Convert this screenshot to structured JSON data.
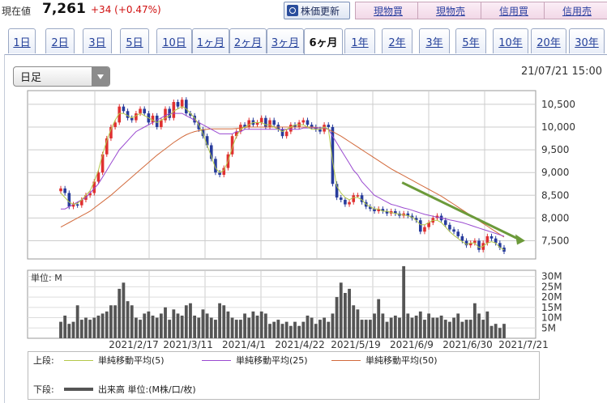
{
  "header": {
    "price_label": "現在値",
    "price_value": "7,261",
    "price_change": "+34 (+0.47%)",
    "refresh_label": "株価更新",
    "trade_buttons": [
      "現物買",
      "現物売",
      "信用買",
      "信用売"
    ]
  },
  "tabs": [
    "1日",
    "2日",
    "3日",
    "5日",
    "10日",
    "1ヶ月",
    "2ヶ月",
    "3ヶ月",
    "6ヶ月",
    "1年",
    "2年",
    "3年",
    "5年",
    "10年",
    "20年",
    "30年"
  ],
  "active_tab": "6ヶ月",
  "select": {
    "value": "日足"
  },
  "datetime": "21/07/21 15:00",
  "colors": {
    "up": "#e03030",
    "down": "#283c9c",
    "ma5": "#b4c84a",
    "ma25": "#9a4ad0",
    "ma50": "#d26a3c",
    "trend": "#6c9a3a",
    "volume": "#555555"
  },
  "chart_data": {
    "type": "candlestick",
    "x_ticks": [
      "2021/2/17",
      "2021/3/11",
      "2021/4/1",
      "2021/4/22",
      "2021/5/19",
      "2021/6/9",
      "2021/6/30",
      "2021/7/21"
    ],
    "y_ticks": [
      "10,500",
      "10,000",
      "9,500",
      "9,000",
      "8,500",
      "8,000",
      "7,500"
    ],
    "y_range": [
      7100,
      10800
    ],
    "close": [
      8650,
      8550,
      8250,
      8300,
      8280,
      8400,
      8500,
      8550,
      8800,
      9000,
      9400,
      9750,
      10000,
      10100,
      10450,
      10350,
      10200,
      10150,
      10300,
      10400,
      10300,
      10100,
      10250,
      10000,
      10150,
      10400,
      10200,
      10550,
      10450,
      10600,
      10300,
      10250,
      10100,
      9950,
      9800,
      9600,
      9300,
      9000,
      8950,
      9100,
      9400,
      9800,
      9900,
      10050,
      10000,
      10150,
      10050,
      10100,
      10200,
      10000,
      10150,
      10050,
      9950,
      9800,
      9900,
      10050,
      10000,
      10100,
      10150,
      10050,
      10000,
      9950,
      9900,
      10050,
      10000,
      8750,
      8450,
      8400,
      8300,
      8350,
      8500,
      8500,
      8350,
      8250,
      8200,
      8150,
      8200,
      8150,
      8100,
      8150,
      8100,
      8050,
      8100,
      8050,
      8000,
      7950,
      7700,
      7800,
      7900,
      8000,
      8050,
      7950,
      7850,
      7750,
      7700,
      7600,
      7500,
      7400,
      7450,
      7500,
      7300,
      7450,
      7600,
      7550,
      7450,
      7350,
      7261
    ],
    "ma5": [
      8550,
      8450,
      8350,
      8300,
      8320,
      8400,
      8500,
      8600,
      8800,
      9050,
      9400,
      9700,
      9950,
      10150,
      10300,
      10300,
      10250,
      10200,
      10250,
      10300,
      10250,
      10200,
      10150,
      10100,
      10150,
      10200,
      10250,
      10350,
      10400,
      10450,
      10400,
      10300,
      10200,
      10050,
      9850,
      9600,
      9350,
      9100,
      9000,
      9050,
      9250,
      9550,
      9800,
      9950,
      10000,
      10050,
      10100,
      10100,
      10100,
      10050,
      10050,
      10000,
      9950,
      9900,
      9950,
      10000,
      10050,
      10050,
      10050,
      10000,
      9950,
      9950,
      9950,
      10000,
      9950,
      9250,
      8700,
      8550,
      8450,
      8400,
      8450,
      8450,
      8400,
      8300,
      8250,
      8200,
      8200,
      8150,
      8150,
      8120,
      8100,
      8080,
      8070,
      8050,
      8020,
      7950,
      7850,
      7850,
      7900,
      7950,
      7950,
      7900,
      7800,
      7700,
      7620,
      7550,
      7480,
      7420,
      7450,
      7450,
      7350,
      7380,
      7450,
      7480,
      7450,
      7350,
      7300
    ],
    "ma25": [
      8200,
      8200,
      8250,
      8300,
      8350,
      8400,
      8450,
      8550,
      8650,
      8750,
      8900,
      9050,
      9200,
      9350,
      9500,
      9600,
      9700,
      9800,
      9900,
      9950,
      10000,
      10050,
      10100,
      10150,
      10200,
      10250,
      10300,
      10300,
      10300,
      10300,
      10250,
      10200,
      10150,
      10100,
      10050,
      10000,
      9950,
      9900,
      9850,
      9850,
      9850,
      9850,
      9900,
      9900,
      9950,
      9950,
      9950,
      9950,
      9950,
      9950,
      9950,
      9950,
      9950,
      9950,
      9950,
      9950,
      9950,
      9950,
      9980,
      9980,
      9980,
      9980,
      9980,
      9980,
      9950,
      9800,
      9650,
      9500,
      9350,
      9200,
      9050,
      8950,
      8800,
      8700,
      8600,
      8500,
      8450,
      8400,
      8350,
      8300,
      8280,
      8250,
      8220,
      8200,
      8170,
      8140,
      8110,
      8080,
      8060,
      8040,
      8020,
      8000,
      7980,
      7960,
      7940,
      7920,
      7900,
      7870,
      7840,
      7810,
      7780,
      7750,
      7720,
      7690,
      7660,
      7630,
      7600
    ],
    "ma50": [
      7800,
      7850,
      7900,
      7950,
      8000,
      8050,
      8100,
      8150,
      8220,
      8290,
      8360,
      8430,
      8500,
      8580,
      8660,
      8740,
      8820,
      8900,
      8980,
      9060,
      9140,
      9220,
      9300,
      9380,
      9450,
      9520,
      9590,
      9660,
      9720,
      9780,
      9830,
      9870,
      9900,
      9920,
      9940,
      9950,
      9960,
      9960,
      9960,
      9960,
      9960,
      9960,
      9970,
      9980,
      9990,
      10000,
      10000,
      10000,
      10000,
      10000,
      10000,
      10000,
      10000,
      10000,
      10000,
      10000,
      10000,
      10000,
      10000,
      10000,
      10000,
      9990,
      9980,
      9970,
      9950,
      9900,
      9850,
      9800,
      9740,
      9680,
      9620,
      9560,
      9500,
      9440,
      9380,
      9320,
      9260,
      9200,
      9140,
      9080,
      9030,
      8980,
      8930,
      8880,
      8830,
      8780,
      8730,
      8680,
      8630,
      8580,
      8530,
      8480,
      8420,
      8360,
      8300,
      8240,
      8180,
      8120,
      8060,
      8000,
      7940,
      7880,
      7820,
      7760,
      7700,
      7640,
      7580
    ],
    "trendline": {
      "start": [
        0.77,
        8780
      ],
      "end": [
        1.0,
        7500
      ]
    },
    "volume_ticks": [
      "30M",
      "25M",
      "20M",
      "15M",
      "10M",
      "5M"
    ],
    "volume": [
      8,
      11,
      7,
      8,
      16,
      9,
      10,
      9,
      10,
      11,
      12,
      13,
      16,
      16,
      24,
      27,
      18,
      16,
      10,
      9,
      12,
      13,
      11,
      10,
      12,
      15,
      9,
      14,
      12,
      11,
      16,
      17,
      11,
      10,
      14,
      12,
      10,
      9,
      17,
      16,
      13,
      10,
      9,
      9,
      12,
      10,
      13,
      11,
      13,
      12,
      7,
      8,
      9,
      7,
      8,
      6,
      8,
      6,
      8,
      11,
      10,
      7,
      9,
      10,
      8,
      12,
      20,
      27,
      22,
      24,
      16,
      14,
      9,
      9,
      9,
      12,
      19,
      12,
      8,
      10,
      11,
      10,
      35,
      12,
      10,
      11,
      13,
      9,
      12,
      10,
      10,
      11,
      9,
      8,
      10,
      12,
      8,
      9,
      9,
      17,
      12,
      9,
      13,
      6,
      7,
      5,
      7
    ]
  },
  "unit_label": "単位: M",
  "legend": {
    "upper_label": "上段:",
    "lower_label": "下段:",
    "ma5_label": "単純移動平均(5)",
    "ma25_label": "単純移動平均(25)",
    "ma50_label": "単純移動平均(50)",
    "volume_label": "出来高 単位:(M株/口/枚)"
  }
}
